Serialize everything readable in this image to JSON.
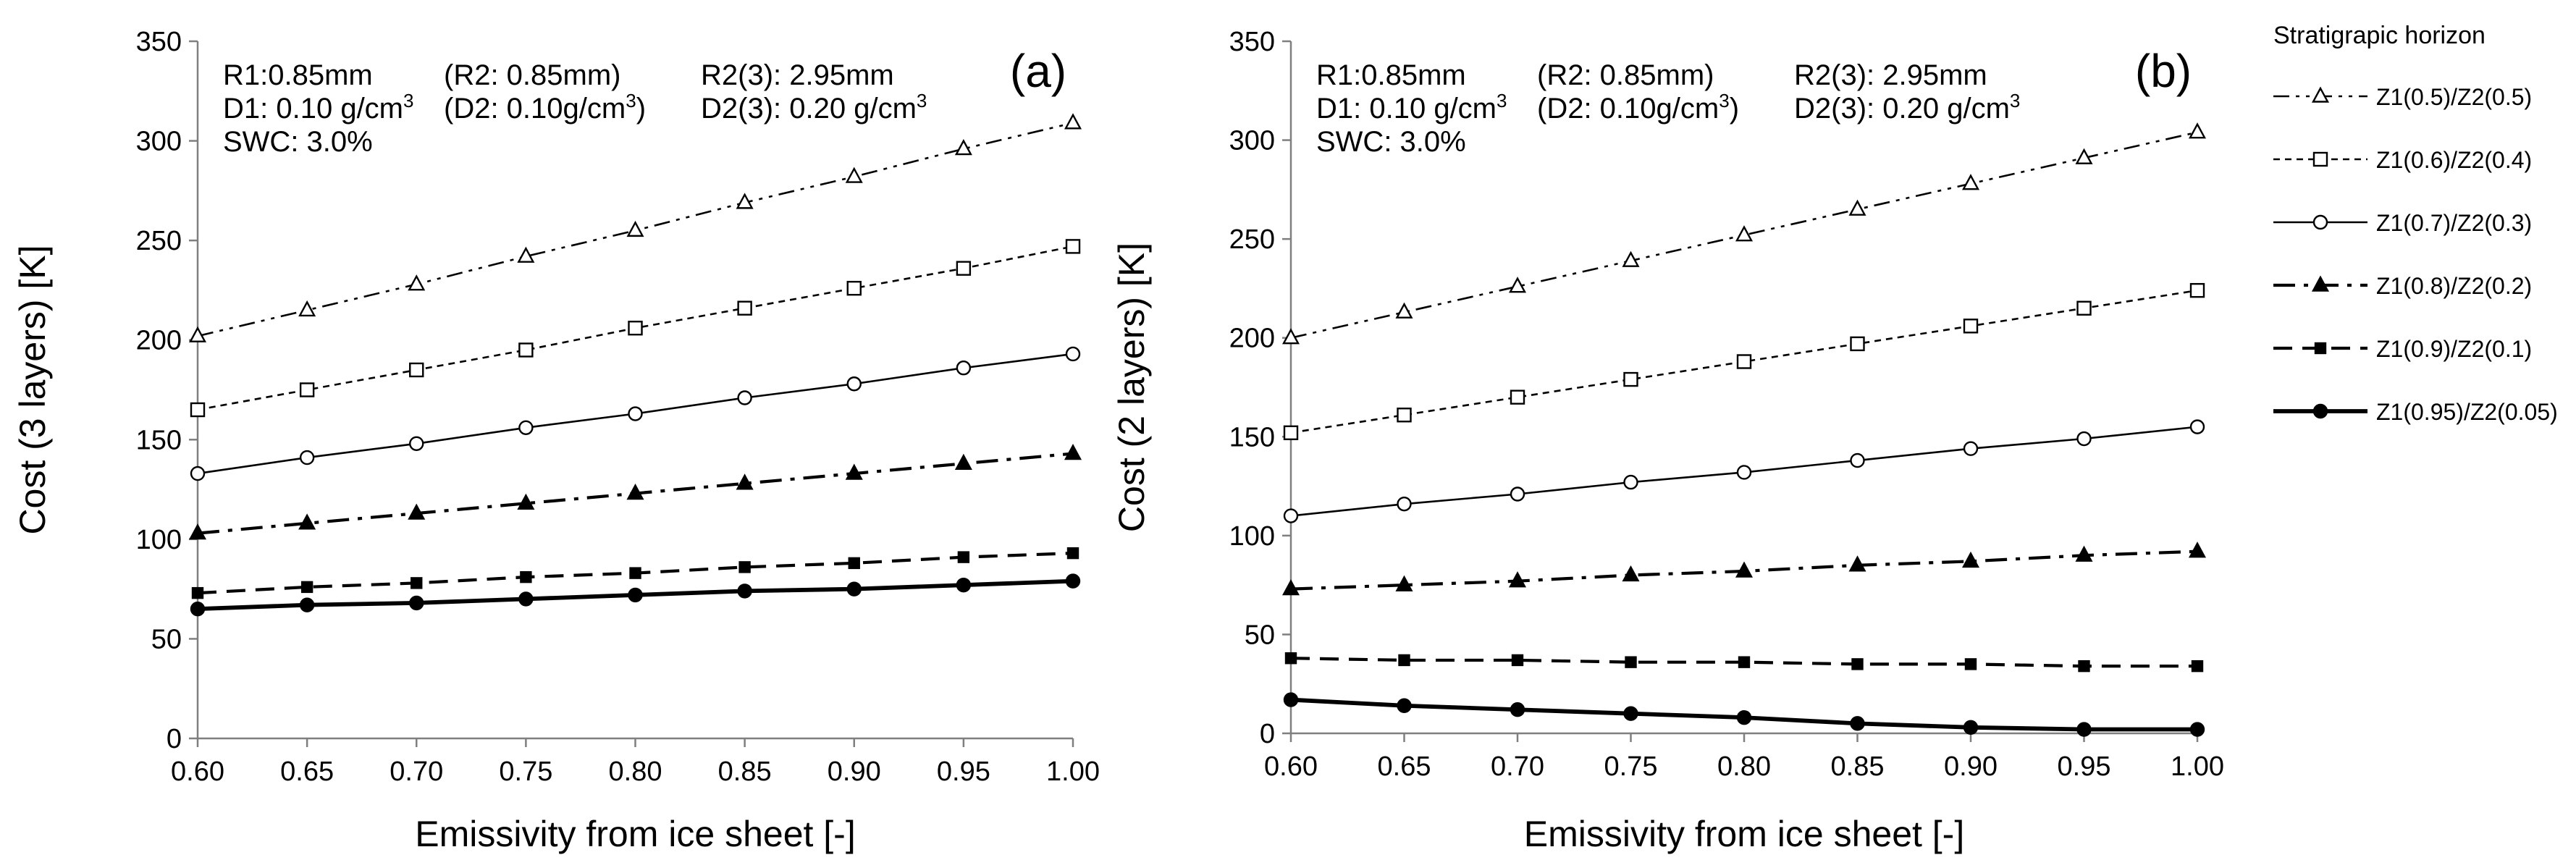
{
  "legend": {
    "title": "Stratigrapic horizon",
    "entries": [
      {
        "label": "Z1(0.5)/Z2(0.5)",
        "marker": "triangle-open",
        "dash": "dashdotdot",
        "width": "thin"
      },
      {
        "label": "Z1(0.6)/Z2(0.4)",
        "marker": "square-open",
        "dash": "dotted",
        "width": "thin"
      },
      {
        "label": "Z1(0.7)/Z2(0.3)",
        "marker": "circle-open",
        "dash": "solid",
        "width": "thin"
      },
      {
        "label": "Z1(0.8)/Z2(0.2)",
        "marker": "triangle-filled",
        "dash": "dashdot",
        "width": "medium"
      },
      {
        "label": "Z1(0.9)/Z2(0.1)",
        "marker": "square-filled",
        "dash": "dashed",
        "width": "medium"
      },
      {
        "label": "Z1(0.95)/Z2(0.05)",
        "marker": "circle-filled",
        "dash": "solid",
        "width": "thick"
      }
    ]
  },
  "chart_data": [
    {
      "type": "line",
      "panel_label": "(a)",
      "xlabel": "Emissivity from ice sheet [-]",
      "ylabel": "Cost (3 layers) [K]",
      "xlim": [
        0.6,
        1.0
      ],
      "ylim": [
        0,
        350
      ],
      "x": [
        0.6,
        0.65,
        0.7,
        0.75,
        0.8,
        0.85,
        0.9,
        0.95,
        1.0
      ],
      "xticks": [
        "0.60",
        "0.65",
        "0.70",
        "0.75",
        "0.80",
        "0.85",
        "0.90",
        "0.95",
        "1.00"
      ],
      "yticks": [
        "0",
        "50",
        "100",
        "150",
        "200",
        "250",
        "300",
        "350"
      ],
      "annotations": [
        [
          "R1:0.85mm",
          "(R2: 0.85mm)",
          "R2(3): 2.95mm"
        ],
        [
          "D1: 0.10 g/cm",
          "(D2: 0.10g/cm",
          "D2(3): 0.20 g/cm"
        ],
        [
          "SWC: 3.0%"
        ]
      ],
      "series": [
        {
          "name": "Z1(0.5)/Z2(0.5)",
          "values": [
            202,
            215,
            228,
            242,
            255,
            269,
            282,
            296,
            309
          ]
        },
        {
          "name": "Z1(0.6)/Z2(0.4)",
          "values": [
            165,
            175,
            185,
            195,
            206,
            216,
            226,
            236,
            247
          ]
        },
        {
          "name": "Z1(0.7)/Z2(0.3)",
          "values": [
            133,
            141,
            148,
            156,
            163,
            171,
            178,
            186,
            193
          ]
        },
        {
          "name": "Z1(0.8)/Z2(0.2)",
          "values": [
            103,
            108,
            113,
            118,
            123,
            128,
            133,
            138,
            143
          ]
        },
        {
          "name": "Z1(0.9)/Z2(0.1)",
          "values": [
            73,
            76,
            78,
            81,
            83,
            86,
            88,
            91,
            93
          ]
        },
        {
          "name": "Z1(0.95)/Z2(0.05)",
          "values": [
            65,
            67,
            68,
            70,
            72,
            74,
            75,
            77,
            79
          ]
        }
      ]
    },
    {
      "type": "line",
      "panel_label": "(b)",
      "xlabel": "Emissivity from ice sheet [-]",
      "ylabel": "Cost (2 layers) [K]",
      "xlim": [
        0.6,
        1.0
      ],
      "ylim": [
        0,
        350
      ],
      "x": [
        0.6,
        0.65,
        0.7,
        0.75,
        0.8,
        0.85,
        0.9,
        0.95,
        1.0
      ],
      "xticks": [
        "0.60",
        "0.65",
        "0.70",
        "0.75",
        "0.80",
        "0.85",
        "0.90",
        "0.95",
        "1.00"
      ],
      "yticks": [
        "0",
        "50",
        "100",
        "150",
        "200",
        "250",
        "300",
        "350"
      ],
      "annotations": [
        [
          "R1:0.85mm",
          "(R2: 0.85mm)",
          "R2(3): 2.95mm"
        ],
        [
          "D1: 0.10 g/cm",
          "(D2: 0.10g/cm",
          "D2(3): 0.20 g/cm"
        ],
        [
          "SWC: 3.0%"
        ]
      ],
      "series": [
        {
          "name": "Z1(0.5)/Z2(0.5)",
          "values": [
            200,
            213,
            226,
            239,
            252,
            265,
            278,
            291,
            304
          ]
        },
        {
          "name": "Z1(0.6)/Z2(0.4)",
          "values": [
            152,
            161,
            170,
            179,
            188,
            197,
            206,
            215,
            224
          ]
        },
        {
          "name": "Z1(0.7)/Z2(0.3)",
          "values": [
            110,
            116,
            121,
            127,
            132,
            138,
            144,
            149,
            155
          ]
        },
        {
          "name": "Z1(0.8)/Z2(0.2)",
          "values": [
            73,
            75,
            77,
            80,
            82,
            85,
            87,
            90,
            92
          ]
        },
        {
          "name": "Z1(0.9)/Z2(0.1)",
          "values": [
            38,
            37,
            37,
            36,
            36,
            35,
            35,
            34,
            34
          ]
        },
        {
          "name": "Z1(0.95)/Z2(0.05)",
          "values": [
            17,
            14,
            12,
            10,
            8,
            5,
            3,
            2,
            2
          ]
        }
      ]
    }
  ]
}
